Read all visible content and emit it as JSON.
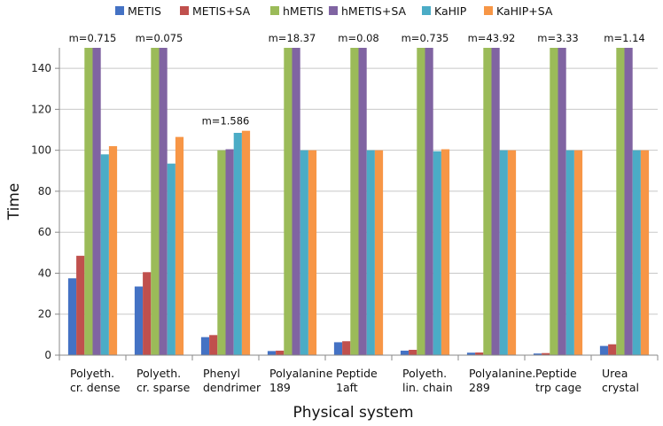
{
  "chart_data": {
    "type": "bar",
    "xlabel": "Physical system",
    "ylabel": "Time",
    "ylim": [
      0,
      150
    ],
    "yticks": [
      0,
      20,
      40,
      60,
      80,
      100,
      120,
      140
    ],
    "grid": "horizontal",
    "legend_position": "top",
    "categories": [
      [
        "Polyeth.",
        "cr. dense"
      ],
      [
        "Polyeth.",
        "cr. sparse"
      ],
      [
        "Phenyl",
        "dendrimer"
      ],
      [
        "Polyalanine",
        "189"
      ],
      [
        "Peptide",
        "1aft"
      ],
      [
        "Polyeth.",
        "lin. chain"
      ],
      [
        "Polyalanine.",
        "289"
      ],
      [
        "Peptide",
        "trp cage"
      ],
      [
        "Urea",
        "crystal"
      ]
    ],
    "annotations": [
      "m=0.715",
      "m=0.075",
      "m=1.586",
      "m=18.37",
      "m=0.08",
      "m=0.735",
      "m=43.92",
      "m=3.33",
      "m=1.14"
    ],
    "series": [
      {
        "name": "METIS",
        "color": "#4472C4",
        "values": [
          37.5,
          33.5,
          8.8,
          2.0,
          6.3,
          2.2,
          1.2,
          0.8,
          4.5
        ]
      },
      {
        "name": "METIS+SA",
        "color": "#C0504D",
        "values": [
          48.5,
          40.5,
          9.8,
          2.2,
          6.8,
          2.6,
          1.3,
          1.0,
          5.3
        ]
      },
      {
        "name": "hMETIS",
        "color": "#9BBB59",
        "values": [
          150,
          150,
          100,
          150,
          150,
          150,
          150,
          150,
          150
        ]
      },
      {
        "name": "hMETIS+SA",
        "color": "#8064A2",
        "values": [
          150,
          150,
          100.5,
          150,
          150,
          150,
          150,
          150,
          150
        ]
      },
      {
        "name": "KaHIP",
        "color": "#4BACC6",
        "values": [
          98,
          93.5,
          108.5,
          100,
          100,
          99.5,
          100,
          100,
          100
        ]
      },
      {
        "name": "KaHIP+SA",
        "color": "#F79646",
        "values": [
          102,
          106.5,
          109.5,
          100,
          100,
          100.5,
          100,
          100,
          100
        ]
      }
    ]
  }
}
